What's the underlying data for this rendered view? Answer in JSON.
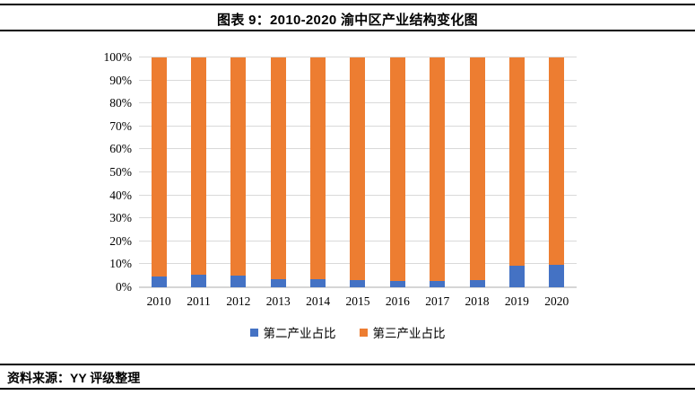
{
  "header": {
    "title": "图表 9：2010-2020 渝中区产业结构变化图"
  },
  "footer": {
    "source": "资料来源：YY 评级整理"
  },
  "chart_data": {
    "type": "bar",
    "stacked": true,
    "title": "图表 9：2010-2020 渝中区产业结构变化图",
    "categories": [
      "2010",
      "2011",
      "2012",
      "2013",
      "2014",
      "2015",
      "2016",
      "2017",
      "2018",
      "2019",
      "2020"
    ],
    "series": [
      {
        "name": "第二产业占比",
        "color": "#4472C4",
        "values": [
          4.8,
          5.5,
          5.0,
          3.5,
          3.5,
          3.0,
          2.8,
          2.8,
          3.2,
          9.4,
          9.6
        ]
      },
      {
        "name": "第三产业占比",
        "color": "#ED7D31",
        "values": [
          95.2,
          94.5,
          95.0,
          96.5,
          96.5,
          97.0,
          97.2,
          97.2,
          96.8,
          90.6,
          90.4
        ]
      }
    ],
    "xlabel": "",
    "ylabel": "",
    "ylim": [
      0,
      100
    ],
    "y_ticks": [
      "100%",
      "90%",
      "80%",
      "70%",
      "60%",
      "50%",
      "40%",
      "30%",
      "20%",
      "10%",
      "0%"
    ],
    "grid": true,
    "gridline_color": "#D9D9D9",
    "legend_position": "bottom"
  }
}
